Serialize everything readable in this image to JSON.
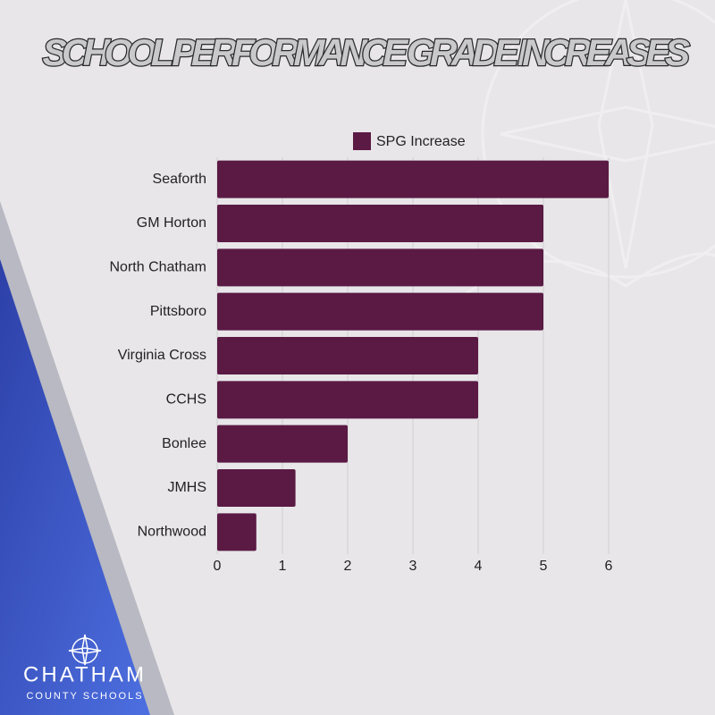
{
  "chart_data": {
    "type": "hbar",
    "title": "SCHOOL PERFORMANCE GRADE INCREASES",
    "categories": [
      "Seaforth",
      "GM Horton",
      "North Chatham",
      "Pittsboro",
      "Virginia Cross",
      "CCHS",
      "Bonlee",
      "JMHS",
      "Northwood"
    ],
    "series": [
      {
        "name": "SPG Increase",
        "color": "#5a1a44",
        "values": [
          6,
          5,
          5,
          5,
          4,
          4,
          2,
          1.2,
          0.6
        ]
      }
    ],
    "xlim": [
      0,
      6
    ],
    "xticks": [
      0,
      1,
      2,
      3,
      4,
      5,
      6
    ],
    "grid": true,
    "legend": "top"
  },
  "logo": {
    "name": "CHATHAM",
    "subtitle": "COUNTY SCHOOLS"
  }
}
